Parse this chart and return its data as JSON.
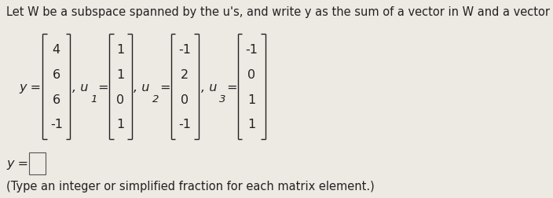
{
  "title": "Let W be a subspace spanned by the u's, and write y as the sum of a vector in W and a vector orthogonal to W.",
  "y_label": "y =",
  "y_vec": [
    "4",
    "6",
    "6",
    "-1"
  ],
  "u1_label": ", u",
  "u1_sub": "1",
  "u1_eq": " =",
  "u1_vec": [
    "1",
    "1",
    "0",
    "1"
  ],
  "u2_label": ", u",
  "u2_sub": "2",
  "u2_eq": " =",
  "u2_vec": [
    "-1",
    "2",
    "0",
    "-1"
  ],
  "u3_label": ", u",
  "u3_sub": "3",
  "u3_eq": " =",
  "u3_vec": [
    "-1",
    "0",
    "1",
    "1"
  ],
  "answer_label": "y =",
  "note": "(Type an integer or simplified fraction for each matrix element.)",
  "bg_color": "#ede9e3",
  "text_color": "#222222",
  "title_fontsize": 10.5,
  "body_fontsize": 11.5,
  "note_fontsize": 10.5
}
